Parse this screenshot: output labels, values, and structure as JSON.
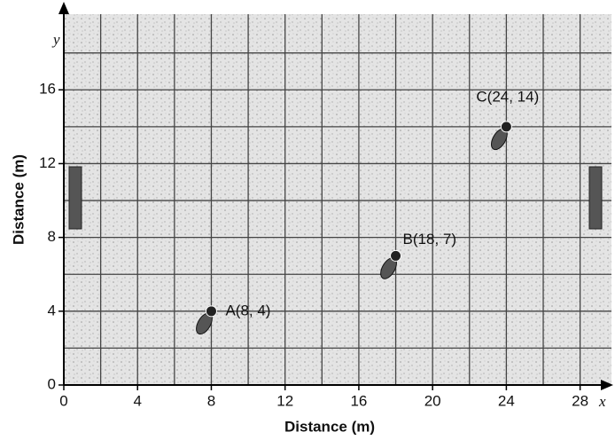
{
  "chart_data": {
    "type": "scatter",
    "x_label": "Distance (m)",
    "y_label": "Distance (m)",
    "x_axis_name": "x",
    "y_axis_name": "y",
    "series": [
      {
        "x": [
          8,
          18,
          24
        ],
        "values": [
          4,
          7,
          14
        ],
        "labels": [
          "A(8, 4)",
          "B(18, 7)",
          "C(24, 14)"
        ],
        "color": "#222222"
      }
    ],
    "xlim": [
      0,
      29.7
    ],
    "ylim": [
      0,
      20.1
    ],
    "xticks": [
      0,
      4,
      8,
      12,
      16,
      20,
      24,
      28
    ],
    "yticks": [
      0,
      4,
      8,
      12,
      16
    ],
    "grid": true
  }
}
